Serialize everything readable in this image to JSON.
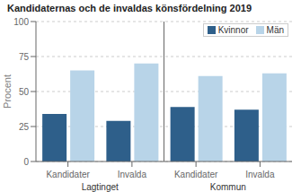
{
  "chart_data": {
    "type": "bar",
    "title": "Kandidaternas och de invaldas könsfördelning 2019",
    "ylabel": "Procent",
    "categories": [
      "Kandidater",
      "Invalda",
      "Kandidater",
      "Invalda"
    ],
    "annotations": [
      "Lagtinget",
      "Kommun"
    ],
    "series": [
      {
        "name": "Kvinnor",
        "color": "#2e5f8a",
        "values": [
          34,
          29,
          39,
          37
        ]
      },
      {
        "name": "Män",
        "color": "#b8d4e8",
        "values": [
          65,
          70,
          61,
          63
        ]
      }
    ],
    "ylim": [
      0,
      100
    ],
    "yticks": [
      0,
      25,
      50,
      75,
      100
    ],
    "grid": true,
    "legend": "upper right"
  }
}
